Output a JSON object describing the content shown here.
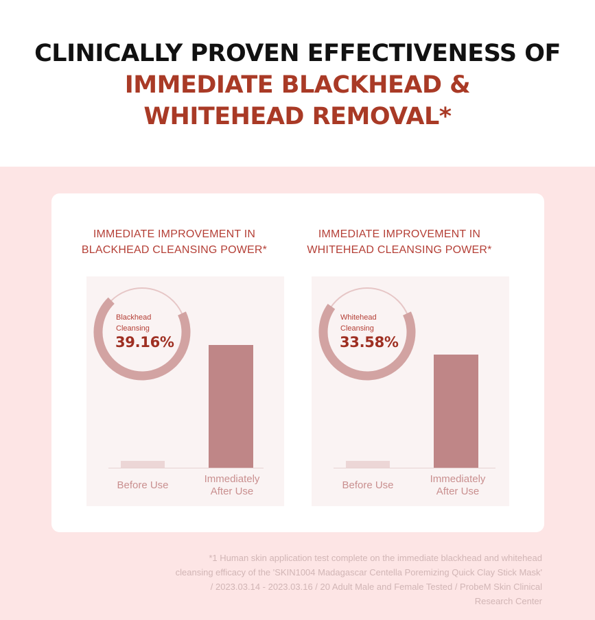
{
  "headline": {
    "line1": "CLINICALLY PROVEN EFFECTIVENESS OF",
    "line2": "IMMEDIATE BLACKHEAD &",
    "line3": "WHITEHEAD REMOVAL*"
  },
  "colors": {
    "accent": "#a93a26",
    "bar_before": "#ecd6d6",
    "bar_after": "#bf8687",
    "ring_track": "#e6c6c6",
    "ring_fill": "#d2a3a2",
    "page_background": "#fde5e5"
  },
  "chart_data": [
    {
      "type": "bar",
      "title_lines": [
        "IMMEDIATE IMPROVEMENT IN",
        "BLACKHEAD CLEANSING POWER*"
      ],
      "categories": [
        [
          "Before Use"
        ],
        [
          "Immediately",
          "After Use"
        ]
      ],
      "values": [
        4,
        71.5
      ],
      "ylim": [
        0,
        100
      ],
      "highlight": {
        "label_lines": [
          "Blackhead",
          "Cleansing"
        ],
        "value_text": "39.16%",
        "percent": 39.16
      }
    },
    {
      "type": "bar",
      "title_lines": [
        "IMMEDIATE IMPROVEMENT IN",
        "WHITEHEAD CLEANSING POWER*"
      ],
      "categories": [
        [
          "Before Use"
        ],
        [
          "Immediately",
          "After Use"
        ]
      ],
      "values": [
        4,
        66
      ],
      "ylim": [
        0,
        100
      ],
      "highlight": {
        "label_lines": [
          "Whitehead",
          "Cleansing"
        ],
        "value_text": "33.58%",
        "percent": 33.58
      }
    }
  ],
  "footnote": {
    "line1": "*1 Human skin application test complete on the immediate blackhead and whitehead",
    "line2": "cleansing efficacy of the 'SKIN1004 Madagascar Centella Poremizing Quick Clay Stick Mask'",
    "line3": "/ 2023.03.14 - 2023.03.16 / 20 Adult Male and Female Tested / ProbeM Skin Clinical",
    "line4": "Research Center"
  }
}
